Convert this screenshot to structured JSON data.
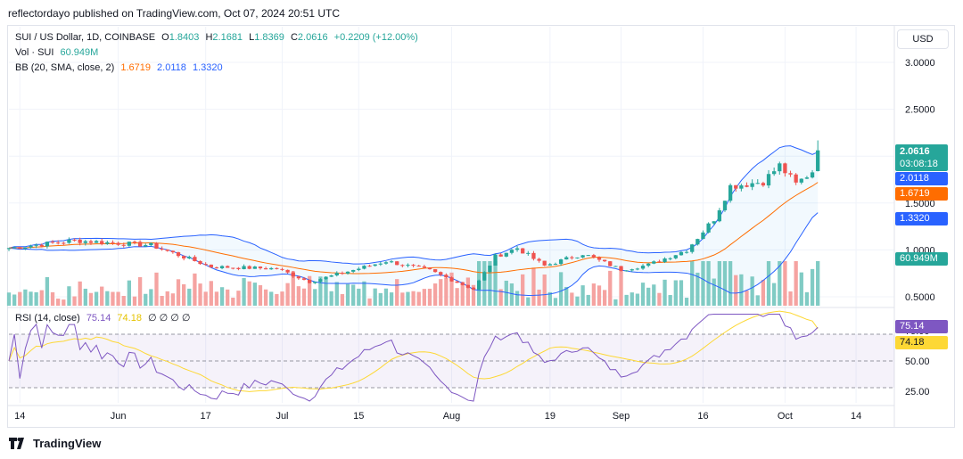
{
  "header": {
    "text": "reflectordayo published on TradingView.com, Oct 07, 2024 20:51 UTC"
  },
  "legend": {
    "symbol": "SUI / US Dollar, 1D, COINBASE",
    "o_label": "O",
    "o": "1.8403",
    "h_label": "H",
    "h": "2.1681",
    "l_label": "L",
    "l": "1.8369",
    "c_label": "C",
    "c": "2.0616",
    "change": "+0.2209 (+12.00%)",
    "vol_label": "Vol · SUI",
    "vol": "60.949M",
    "bb_label": "BB (20, SMA, close, 2)",
    "bb_basis": "1.6719",
    "bb_upper": "2.0118",
    "bb_lower": "1.3320",
    "rsi_label": "RSI (14, close)",
    "rsi": "75.14",
    "rsi_ma": "74.18",
    "rsi_extra": "∅ ∅ ∅ ∅"
  },
  "price_axis": {
    "currency": "USD",
    "ticks": [
      "3.0000",
      "2.5000",
      "2.0000",
      "1.5000",
      "1.0000",
      "0.5000"
    ]
  },
  "rsi_axis": {
    "ticks": [
      "75.00",
      "50.00",
      "25.00"
    ]
  },
  "time_axis": {
    "ticks": [
      "14",
      "Jun",
      "17",
      "Jul",
      "15",
      "Aug",
      "19",
      "Sep",
      "16",
      "Oct",
      "14"
    ]
  },
  "tags": {
    "price": "2.0616",
    "countdown": "03:08:18",
    "upper": "2.0118",
    "basis": "1.6719",
    "lower": "1.3320",
    "volume": "60.949M",
    "rsi": "75.14",
    "rsi_ma": "74.18"
  },
  "brand": {
    "name": "TradingView"
  },
  "colors": {
    "up": "#26a69a",
    "down": "#ef5350",
    "bb_band": "#2962ff",
    "bb_basis": "#ff6d00",
    "rsi_line": "#7e57c2",
    "rsi_ma": "#fdd835",
    "vol_up": "#80cbc4",
    "vol_down": "#f5a3a1"
  },
  "chart_data": {
    "type": "candlestick",
    "symbol": "SUI / US Dollar",
    "interval": "1D",
    "exchange": "COINBASE",
    "x_start": "2024-05-12",
    "x_end": "2024-10-07",
    "price_range": [
      0.35,
      3.25
    ],
    "rsi_range": [
      15,
      85
    ],
    "rsi_levels": [
      70,
      50,
      30
    ],
    "price_anchors": [
      {
        "date": "2024-05-12",
        "close": 1.02
      },
      {
        "date": "2024-05-24",
        "close": 1.1
      },
      {
        "date": "2024-06-07",
        "close": 1.05
      },
      {
        "date": "2024-06-18",
        "close": 0.82
      },
      {
        "date": "2024-06-30",
        "close": 0.8
      },
      {
        "date": "2024-07-06",
        "close": 0.66
      },
      {
        "date": "2024-07-20",
        "close": 0.88
      },
      {
        "date": "2024-07-28",
        "close": 0.78
      },
      {
        "date": "2024-08-05",
        "close": 0.58
      },
      {
        "date": "2024-08-09",
        "close": 0.93
      },
      {
        "date": "2024-08-13",
        "close": 1.02
      },
      {
        "date": "2024-08-18",
        "close": 0.83
      },
      {
        "date": "2024-08-25",
        "close": 0.96
      },
      {
        "date": "2024-09-01",
        "close": 0.79
      },
      {
        "date": "2024-09-06",
        "close": 0.84
      },
      {
        "date": "2024-09-13",
        "close": 1.0
      },
      {
        "date": "2024-09-18",
        "close": 1.33
      },
      {
        "date": "2024-09-21",
        "close": 1.68
      },
      {
        "date": "2024-09-27",
        "close": 1.73
      },
      {
        "date": "2024-09-30",
        "close": 1.9
      },
      {
        "date": "2024-10-03",
        "close": 1.7
      },
      {
        "date": "2024-10-06",
        "close": 1.84
      },
      {
        "date": "2024-10-07",
        "open": 1.8403,
        "high": 2.1681,
        "low": 1.8369,
        "close": 2.0616
      }
    ],
    "bollinger": {
      "period": 20,
      "mult": 2,
      "basis": 1.6719,
      "upper": 2.0118,
      "lower": 1.332
    },
    "volume_last": "60.949M",
    "rsi_last": 75.14,
    "rsi_ma_last": 74.18
  }
}
